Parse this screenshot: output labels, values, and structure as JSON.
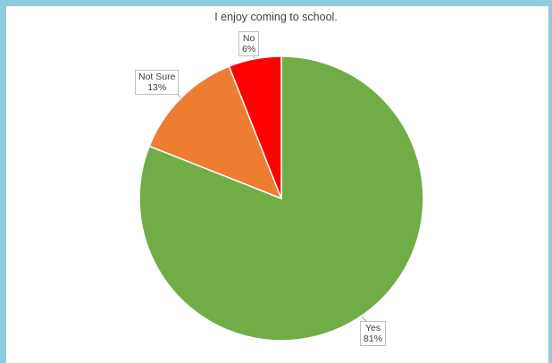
{
  "chart_data": {
    "type": "pie",
    "title": "I enjoy coming to school.",
    "slices": [
      {
        "name": "Yes",
        "value": 81,
        "label": "81%",
        "color": "#70ad47"
      },
      {
        "name": "Not Sure",
        "value": 13,
        "label": "13%",
        "color": "#ed7d31"
      },
      {
        "name": "No",
        "value": 6,
        "label": "6%",
        "color": "#ff0000"
      }
    ],
    "start": "12 o'clock",
    "direction": "clockwise",
    "legend": "none",
    "data_labels": "callout"
  },
  "colors": {
    "border": "#8fcbdc",
    "slice_edge": "#ffffff"
  }
}
